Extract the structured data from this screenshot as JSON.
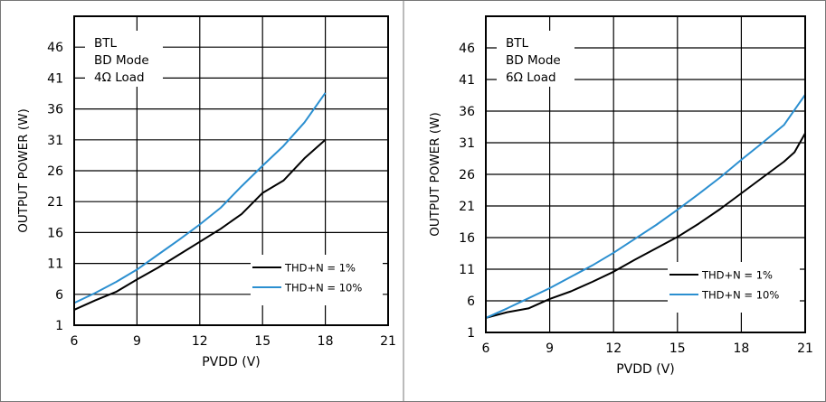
{
  "chart_data": [
    {
      "type": "line",
      "xlabel": "PVDD (V)",
      "ylabel": "OUTPUT POWER (W)",
      "xlim": [
        6,
        21
      ],
      "ylim": [
        1,
        51
      ],
      "xticks": [
        6,
        9,
        12,
        15,
        18,
        21
      ],
      "yticks": [
        1,
        6,
        11,
        16,
        21,
        26,
        31,
        36,
        41,
        46
      ],
      "grid": true,
      "annotation": [
        "BTL",
        "BD Mode",
        "4Ω Load"
      ],
      "legend_position": "bottom-right",
      "series": [
        {
          "name": "THD+N = 1%",
          "color": "#000000",
          "x": [
            6,
            7,
            8,
            9,
            10,
            11,
            12,
            13,
            14,
            15,
            16,
            17,
            18
          ],
          "y": [
            3.5,
            5.0,
            6.4,
            8.4,
            10.3,
            12.4,
            14.5,
            16.6,
            19.0,
            22.4,
            24.4,
            28.0,
            31.0
          ]
        },
        {
          "name": "THD+N = 10%",
          "color": "#2b8fd0",
          "x": [
            6,
            7,
            8,
            9,
            10,
            11,
            12,
            13,
            14,
            15,
            16,
            17,
            18
          ],
          "y": [
            4.6,
            6.2,
            8.0,
            10.0,
            12.4,
            14.8,
            17.3,
            20.0,
            23.5,
            26.8,
            30.0,
            33.8,
            38.6
          ]
        }
      ]
    },
    {
      "type": "line",
      "xlabel": "PVDD (V)",
      "ylabel": "OUTPUT POWER (W)",
      "xlim": [
        6,
        21
      ],
      "ylim": [
        1,
        51
      ],
      "xticks": [
        6,
        9,
        12,
        15,
        18,
        21
      ],
      "yticks": [
        1,
        6,
        11,
        16,
        21,
        26,
        31,
        36,
        41,
        46
      ],
      "grid": true,
      "annotation": [
        "BTL",
        "BD Mode",
        "6Ω Load"
      ],
      "legend_position": "bottom-right",
      "series": [
        {
          "name": "THD+N = 1%",
          "color": "#000000",
          "x": [
            6,
            7,
            8,
            9,
            10,
            11,
            12,
            13,
            14,
            15,
            16,
            17,
            18,
            19,
            20,
            20.5,
            21
          ],
          "y": [
            3.3,
            4.2,
            4.8,
            6.3,
            7.5,
            9.0,
            10.6,
            12.5,
            14.3,
            16.1,
            18.2,
            20.5,
            23.0,
            25.5,
            28.0,
            29.5,
            32.5
          ]
        },
        {
          "name": "THD+N = 10%",
          "color": "#2b8fd0",
          "x": [
            6,
            7,
            8,
            9,
            10,
            11,
            12,
            13,
            14,
            15,
            16,
            17,
            18,
            19,
            20,
            21
          ],
          "y": [
            3.3,
            4.8,
            6.4,
            8.0,
            9.8,
            11.6,
            13.6,
            15.8,
            18.0,
            20.4,
            22.9,
            25.5,
            28.3,
            31.0,
            33.8,
            38.6
          ]
        }
      ]
    }
  ]
}
